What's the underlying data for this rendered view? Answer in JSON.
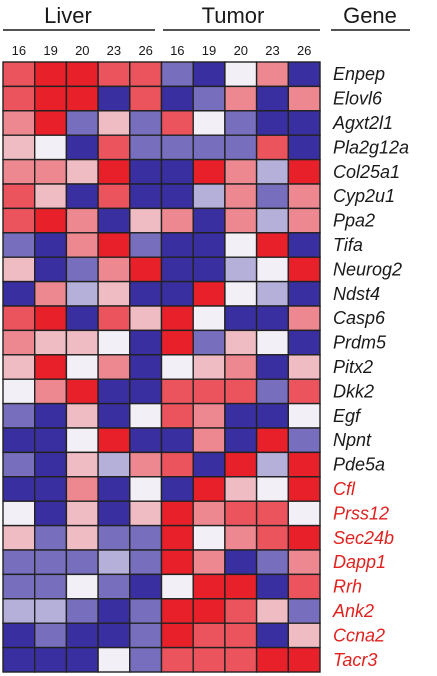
{
  "chart_data": {
    "type": "heatmap",
    "groups": [
      {
        "name": "Liver",
        "columns": [
          "16",
          "19",
          "20",
          "23",
          "26"
        ]
      },
      {
        "name": "Tumor",
        "columns": [
          "16",
          "19",
          "20",
          "23",
          "26"
        ]
      }
    ],
    "gene_header": "Gene",
    "genes": [
      {
        "name": "Enpep",
        "highlight": false
      },
      {
        "name": "Elovl6",
        "highlight": false
      },
      {
        "name": "Agxt2l1",
        "highlight": false
      },
      {
        "name": "Pla2g12a",
        "highlight": false
      },
      {
        "name": "Col25a1",
        "highlight": false
      },
      {
        "name": "Cyp2u1",
        "highlight": false
      },
      {
        "name": "Ppa2",
        "highlight": false
      },
      {
        "name": "Tifa",
        "highlight": false
      },
      {
        "name": "Neurog2",
        "highlight": false
      },
      {
        "name": "Ndst4",
        "highlight": false
      },
      {
        "name": "Casp6",
        "highlight": false
      },
      {
        "name": "Prdm5",
        "highlight": false
      },
      {
        "name": "Pitx2",
        "highlight": false
      },
      {
        "name": "Dkk2",
        "highlight": false
      },
      {
        "name": "Egf",
        "highlight": false
      },
      {
        "name": "Npnt",
        "highlight": false
      },
      {
        "name": "Pde5a",
        "highlight": false
      },
      {
        "name": "Cfl",
        "highlight": true
      },
      {
        "name": "Prss12",
        "highlight": true
      },
      {
        "name": "Sec24b",
        "highlight": true
      },
      {
        "name": "Dapp1",
        "highlight": true
      },
      {
        "name": "Rrh",
        "highlight": true
      },
      {
        "name": "Ank2",
        "highlight": true
      },
      {
        "name": "Ccna2",
        "highlight": true
      },
      {
        "name": "Tacr3",
        "highlight": true
      }
    ],
    "values": [
      [
        3,
        4,
        4,
        3,
        3,
        -2,
        -3,
        0,
        2,
        -3
      ],
      [
        3,
        4,
        4,
        -3,
        3,
        -3,
        -2,
        2,
        -3,
        2
      ],
      [
        2,
        4,
        -2,
        1,
        -2,
        3,
        0,
        -2,
        -3,
        -3
      ],
      [
        1,
        0,
        -3,
        3,
        -2,
        -2,
        -2,
        -2,
        3,
        -3
      ],
      [
        2,
        2,
        1,
        4,
        -3,
        -3,
        4,
        2,
        -1,
        4
      ],
      [
        3,
        1,
        -3,
        3,
        -3,
        -3,
        -1,
        2,
        -2,
        2
      ],
      [
        3,
        4,
        2,
        -3,
        1,
        2,
        -3,
        2,
        -1,
        2
      ],
      [
        -2,
        -3,
        2,
        4,
        -2,
        -3,
        -3,
        0,
        4,
        -3
      ],
      [
        1,
        -3,
        -2,
        2,
        4,
        -3,
        -3,
        -1,
        0,
        4
      ],
      [
        -3,
        2,
        -1,
        1,
        -3,
        -3,
        4,
        0,
        -1,
        -3
      ],
      [
        3,
        4,
        -3,
        3,
        1,
        4,
        0,
        -3,
        -3,
        2
      ],
      [
        2,
        1,
        1,
        0,
        -3,
        4,
        -2,
        1,
        0,
        -3
      ],
      [
        1,
        4,
        0,
        2,
        -3,
        0,
        1,
        2,
        -3,
        1
      ],
      [
        0,
        2,
        4,
        -3,
        -3,
        3,
        3,
        3,
        -2,
        3
      ],
      [
        -2,
        -3,
        1,
        -3,
        0,
        3,
        2,
        -3,
        -3,
        0
      ],
      [
        -3,
        -3,
        0,
        4,
        -3,
        -3,
        2,
        -3,
        4,
        -2
      ],
      [
        -2,
        -3,
        1,
        -1,
        2,
        3,
        -3,
        4,
        -1,
        4
      ],
      [
        -3,
        -3,
        2,
        -3,
        0,
        -3,
        4,
        1,
        0,
        4
      ],
      [
        0,
        -3,
        1,
        -3,
        1,
        4,
        2,
        3,
        3,
        0
      ],
      [
        1,
        -2,
        1,
        -2,
        -2,
        4,
        0,
        2,
        3,
        4
      ],
      [
        -2,
        -2,
        -2,
        -1,
        -2,
        4,
        2,
        -3,
        -2,
        2
      ],
      [
        -2,
        -2,
        0,
        -2,
        -3,
        0,
        4,
        4,
        -3,
        3
      ],
      [
        -1,
        -1,
        -2,
        -3,
        -2,
        4,
        4,
        3,
        1,
        -2
      ],
      [
        -3,
        -2,
        -3,
        -3,
        -2,
        4,
        3,
        3,
        -3,
        1
      ],
      [
        -3,
        -3,
        -3,
        0,
        -2,
        3,
        3,
        3,
        4,
        4
      ]
    ],
    "value_scale": {
      "min": -3,
      "max": 4,
      "low_color": "#3a2fa0",
      "mid_color": "#f2f0f6",
      "high_color": "#e8202a"
    },
    "label_colors": {
      "normal": "#1a1a1a",
      "highlight": "#e0221f"
    },
    "grid": true,
    "legend": "none"
  }
}
